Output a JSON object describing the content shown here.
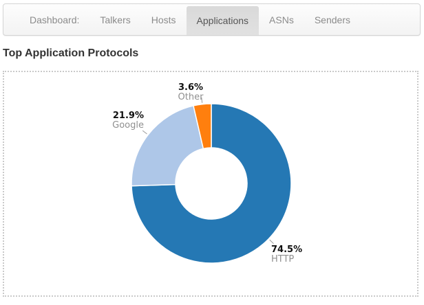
{
  "nav": {
    "items": [
      {
        "label": "Dashboard:",
        "active": false
      },
      {
        "label": "Talkers",
        "active": false
      },
      {
        "label": "Hosts",
        "active": false
      },
      {
        "label": "Applications",
        "active": true
      },
      {
        "label": "ASNs",
        "active": false
      },
      {
        "label": "Senders",
        "active": false
      }
    ]
  },
  "page_title": "Top Application Protocols",
  "chart_data": {
    "type": "pie",
    "donut": true,
    "title": "Top Application Protocols",
    "start_angle": "top",
    "direction": "clockwise",
    "legend_position": "none",
    "label_style": "percent above name, outside with gray leader ticks",
    "slices": [
      {
        "label": "HTTP",
        "percent": 74.5,
        "percent_label": "74.5%",
        "color": "#2578b4"
      },
      {
        "label": "Google",
        "percent": 21.9,
        "percent_label": "21.9%",
        "color": "#aec7e8"
      },
      {
        "label": "Other",
        "percent": 3.6,
        "percent_label": "3.6%",
        "color": "#ff7f0e"
      }
    ],
    "tick_color": "#999999",
    "slice_border_color": "#ffffff"
  }
}
